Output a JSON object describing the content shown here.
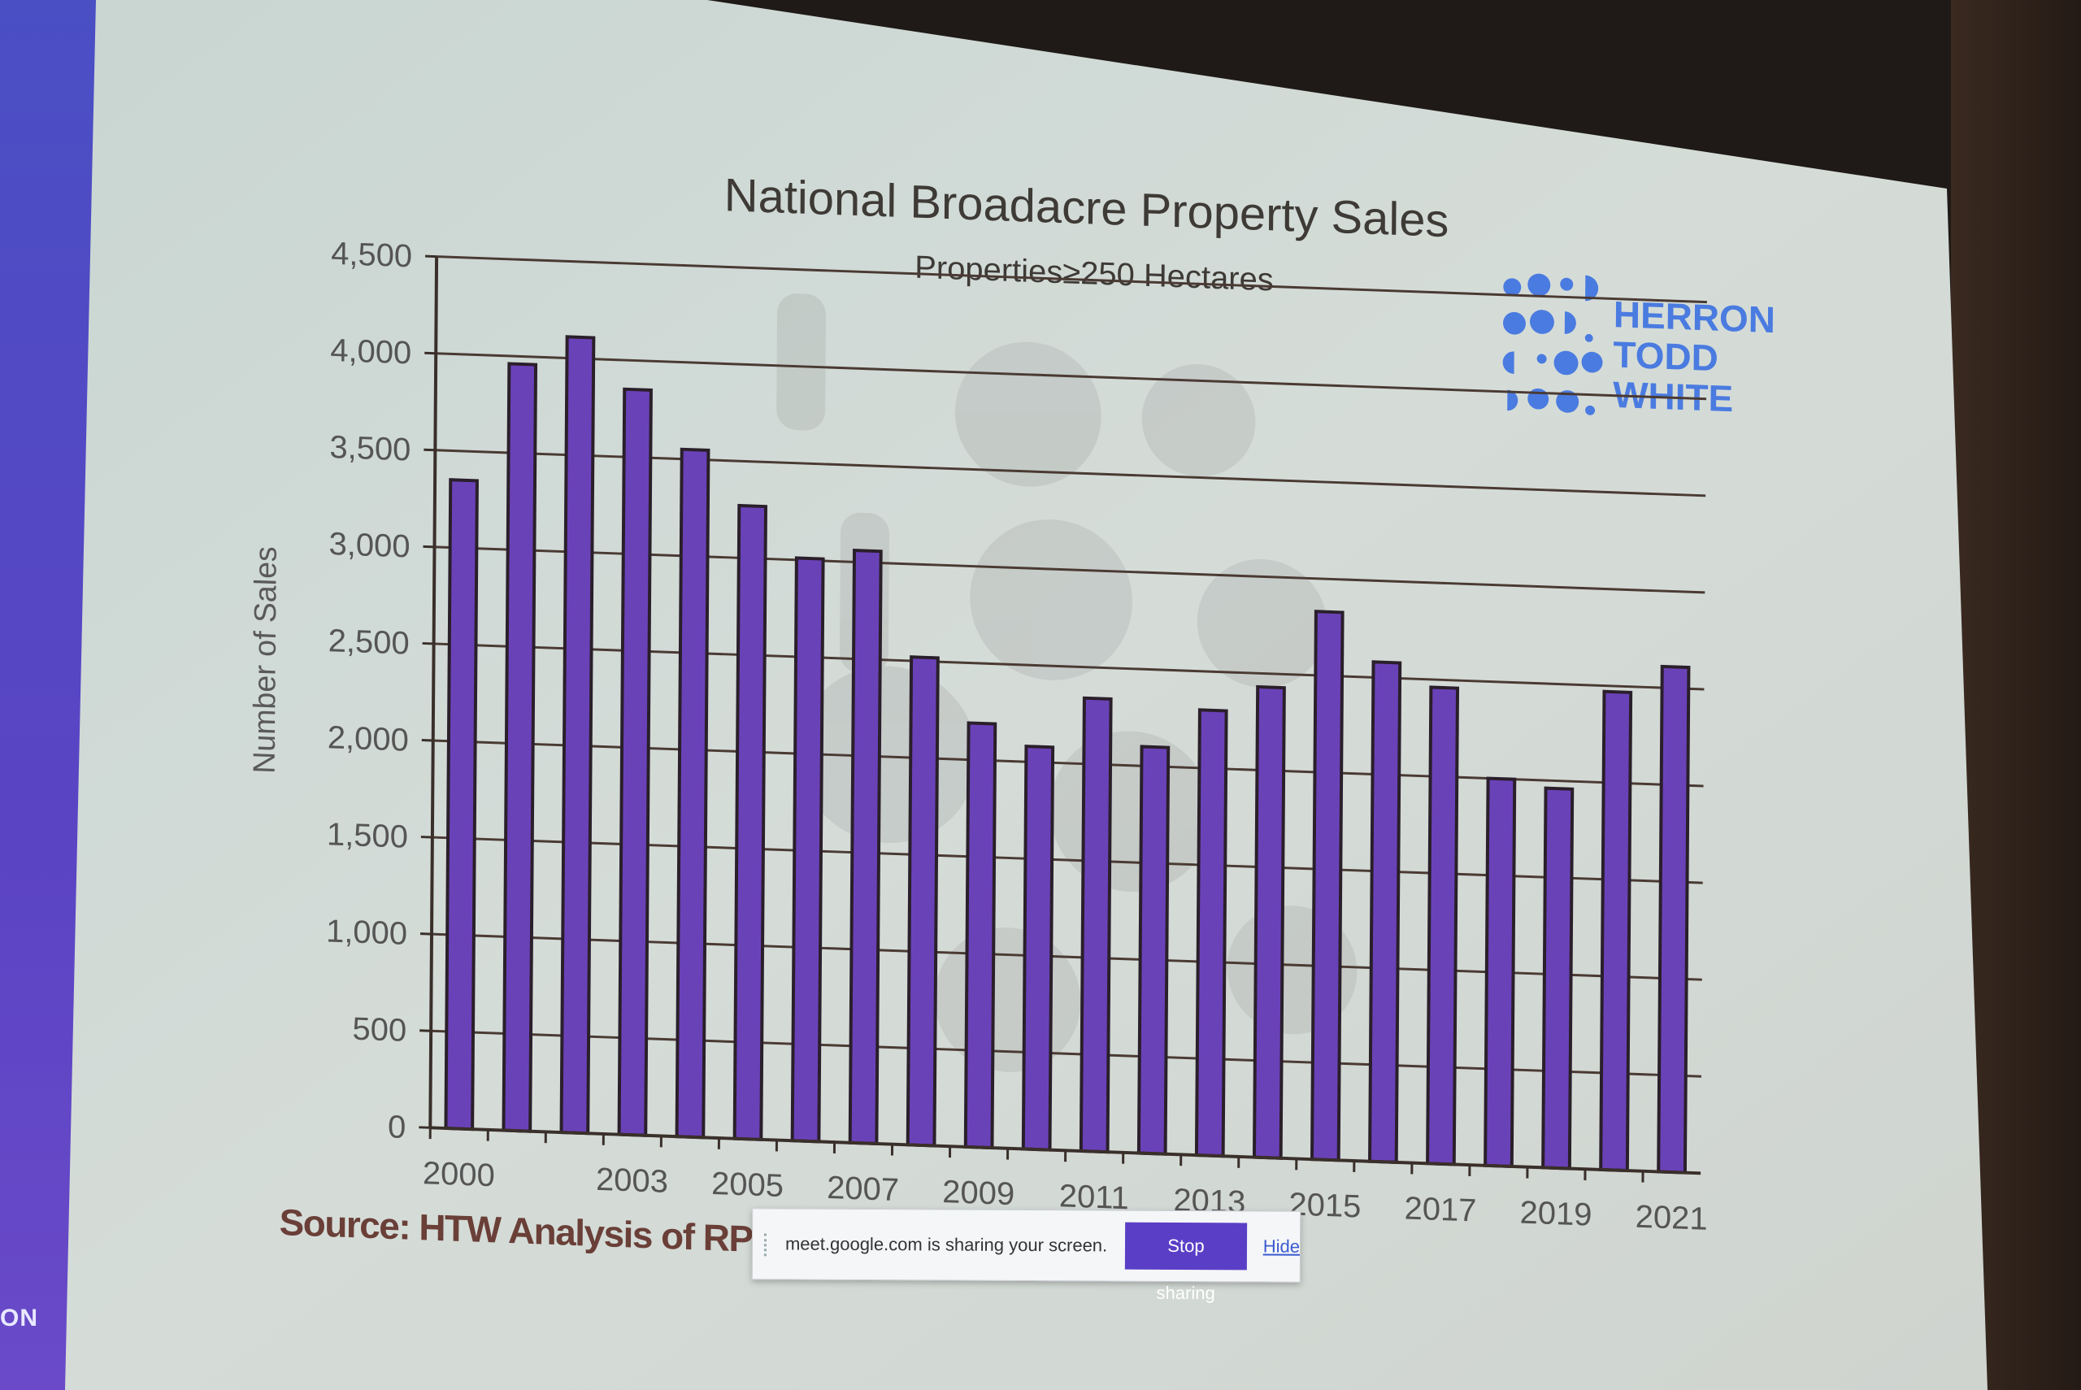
{
  "slide": {
    "source": "Source: HTW Analysis of RPD",
    "logo": {
      "line1": "HERRON",
      "line2": "TODD",
      "line3": "WHITE",
      "color": "#4a7be0"
    }
  },
  "left_panel": {
    "text": "ON"
  },
  "share_bar": {
    "message": "meet.google.com is sharing your screen.",
    "stop_label": "Stop sharing",
    "hide_label": "Hide"
  },
  "chart_data": {
    "type": "bar",
    "title": "National Broadacre Property Sales",
    "subtitle": "Properties≥250 Hectares",
    "ylabel": "Number of Sales",
    "xlabel": "",
    "ylim": [
      0,
      4500
    ],
    "yticks": [
      "0",
      "500",
      "1,000",
      "1,500",
      "2,000",
      "2,500",
      "3,000",
      "3,500",
      "4,000",
      "4,500"
    ],
    "categories": [
      "2000",
      "2001",
      "2002",
      "2003",
      "2004",
      "2005",
      "2006",
      "2007",
      "2008",
      "2009",
      "2010",
      "2011",
      "2012",
      "2013",
      "2014",
      "2015",
      "2016",
      "2017",
      "2018",
      "2019",
      "2020",
      "2021"
    ],
    "xtick_labels": [
      "2000",
      "",
      "",
      "2003",
      "",
      "2005",
      "",
      "2007",
      "",
      "2009",
      "",
      "2011",
      "",
      "2013",
      "",
      "2015",
      "",
      "2017",
      "",
      "2019",
      "",
      "2021"
    ],
    "values": [
      3350,
      3960,
      4110,
      3850,
      3550,
      3270,
      3010,
      3060,
      2520,
      2190,
      2080,
      2340,
      2100,
      2300,
      2430,
      2830,
      2580,
      2460,
      2000,
      1960,
      2470,
      2610
    ],
    "bar_color": "#6a42b8",
    "grid": true
  }
}
